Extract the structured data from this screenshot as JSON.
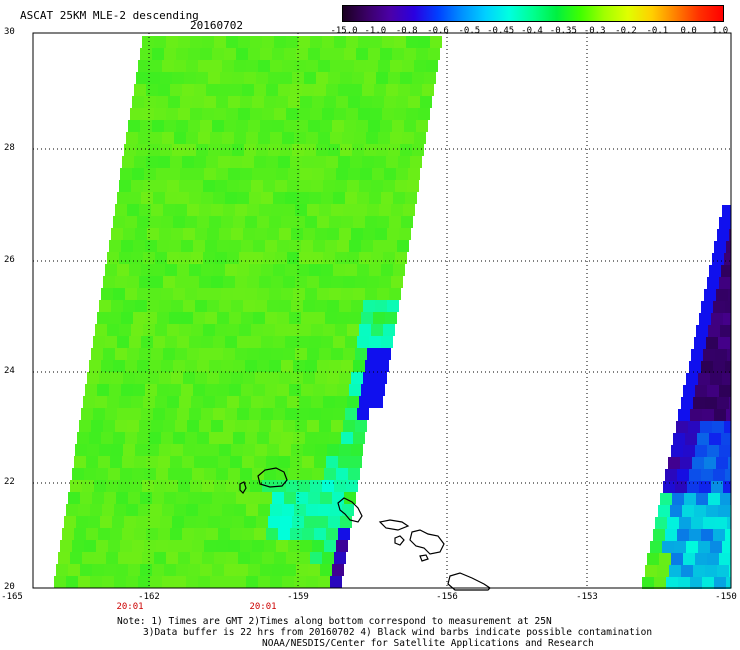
{
  "header": {
    "title": "ASCAT 25KM MLE-2 descending",
    "date": "20160702"
  },
  "colorbar": {
    "labels": [
      "-15.0",
      "-1.0",
      "-0.8",
      "-0.6",
      "-0.5",
      "-0.45",
      "-0.4",
      "-0.35",
      "-0.3",
      "-0.2",
      "-0.1",
      "0.0",
      "1.0"
    ],
    "colors": [
      "#1a0020",
      "#3a0066",
      "#4b00a8",
      "#2a00e0",
      "#0040ff",
      "#0090ff",
      "#00d0ff",
      "#00ffe0",
      "#00ff90",
      "#00f040",
      "#40ff00",
      "#a0ff00",
      "#e0ff00",
      "#ffd000",
      "#ff8000",
      "#ff3000",
      "#ff0000"
    ]
  },
  "map": {
    "lat_range": [
      20,
      30
    ],
    "lon_range": [
      -165,
      -150
    ],
    "lat_ticks": [
      "30",
      "28",
      "26",
      "24",
      "22",
      "20"
    ],
    "lon_ticks": [
      "-165",
      "-162",
      "-159",
      "-156",
      "-153",
      "-150"
    ],
    "swath_times": [
      "20:01",
      "20:01"
    ],
    "swath_colors": {
      "green": "#33ee22",
      "yellow_green": "#88ee11",
      "cyan": "#00ffdd",
      "blue": "#1010ee",
      "purple": "#44008a",
      "dark_purple": "#2a0050"
    }
  },
  "notes": {
    "line1": "Note: 1) Times are GMT 2)Times along bottom correspond to measurement at 25N",
    "line2": "3)Data buffer is 22 hrs from 20160702 4) Black wind barbs indicate possible contamination",
    "line3": "NOAA/NESDIS/Center for Satellite Applications and Research"
  }
}
